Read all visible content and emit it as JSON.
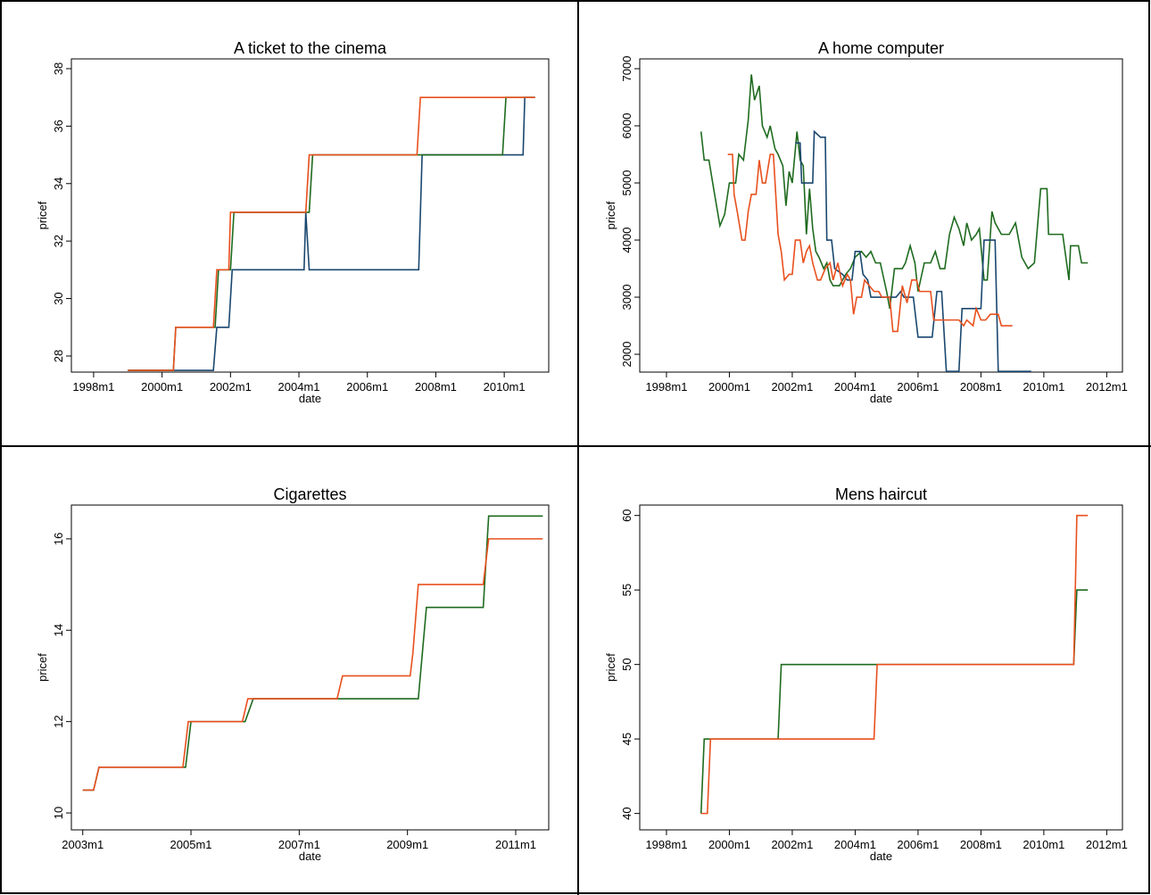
{
  "chart_data": [
    {
      "type": "line",
      "title": "A ticket to the cinema",
      "xlabel": "date",
      "ylabel": "pricef",
      "xlim": [
        1997.35,
        2011.3
      ],
      "ylim": [
        27.44,
        38.34
      ],
      "xticks": [
        {
          "value": 1998,
          "label": "1998m1"
        },
        {
          "value": 2000,
          "label": "2000m1"
        },
        {
          "value": 2002,
          "label": "2002m1"
        },
        {
          "value": 2004,
          "label": "2004m1"
        },
        {
          "value": 2006,
          "label": "2006m1"
        },
        {
          "value": 2008,
          "label": "2008m1"
        },
        {
          "value": 2010,
          "label": "2010m1"
        }
      ],
      "yticks": [
        28,
        30,
        32,
        34,
        36,
        38
      ],
      "series": [
        {
          "color": "#1a476f",
          "x": [
            1999.0,
            2001.5,
            2001.6,
            2001.95,
            2002.05,
            2004.15,
            2004.2,
            2004.3,
            2007.5,
            2007.6,
            2010.55,
            2010.6,
            2010.9
          ],
          "values": [
            27.5,
            27.5,
            29,
            29,
            31,
            31,
            33,
            31,
            31,
            35,
            35,
            37,
            37
          ]
        },
        {
          "color": "#1f6b1f",
          "x": [
            1999.0,
            2000.33,
            2000.4,
            2001.55,
            2001.65,
            2002.0,
            2002.1,
            2004.3,
            2004.4,
            2009.95,
            2010.05,
            2010.9
          ],
          "values": [
            27.5,
            27.5,
            29,
            29,
            31,
            31,
            33,
            33,
            35,
            35,
            37,
            37
          ]
        },
        {
          "color": "#e8501e",
          "x": [
            1999.0,
            2000.33,
            2000.4,
            2001.5,
            2001.6,
            2001.95,
            2002.0,
            2004.2,
            2004.3,
            2007.45,
            2007.55,
            2010.9
          ],
          "values": [
            27.5,
            27.5,
            29,
            29,
            31,
            31,
            33,
            33,
            35,
            35,
            37,
            37
          ]
        }
      ]
    },
    {
      "type": "line",
      "title": "A home computer",
      "xlabel": "date",
      "ylabel": "pricef",
      "xlim": [
        1997.15,
        2012.5
      ],
      "ylim": [
        1688,
        7172
      ],
      "xticks": [
        {
          "value": 1998,
          "label": "1998m1"
        },
        {
          "value": 2000,
          "label": "2000m1"
        },
        {
          "value": 2002,
          "label": "2002m1"
        },
        {
          "value": 2004,
          "label": "2004m1"
        },
        {
          "value": 2006,
          "label": "2006m1"
        },
        {
          "value": 2008,
          "label": "2008m1"
        },
        {
          "value": 2010,
          "label": "2010m1"
        },
        {
          "value": 2012,
          "label": "2012m1"
        }
      ],
      "yticks": [
        2000,
        3000,
        4000,
        5000,
        6000,
        7000
      ],
      "series": [
        {
          "color": "#1f6b1f",
          "x": [
            1999.1,
            1999.2,
            1999.35,
            1999.5,
            1999.7,
            1999.85,
            2000.0,
            2000.2,
            2000.3,
            2000.45,
            2000.6,
            2000.7,
            2000.8,
            2000.95,
            2001.05,
            2001.2,
            2001.3,
            2001.45,
            2001.55,
            2001.7,
            2001.8,
            2001.9,
            2002.0,
            2002.15,
            2002.25,
            2002.35,
            2002.45,
            2002.55,
            2002.65,
            2002.75,
            2002.85,
            2003.0,
            2003.1,
            2003.2,
            2003.3,
            2003.5,
            2003.7,
            2003.85,
            2004.0,
            2004.2,
            2004.35,
            2004.5,
            2004.65,
            2004.8,
            2005.0,
            2005.1,
            2005.25,
            2005.5,
            2005.6,
            2005.75,
            2005.9,
            2006.0,
            2006.2,
            2006.4,
            2006.55,
            2006.7,
            2006.85,
            2007.0,
            2007.15,
            2007.3,
            2007.45,
            2007.55,
            2007.7,
            2007.85,
            2007.95,
            2008.1,
            2008.2,
            2008.35,
            2008.45,
            2008.65,
            2008.9,
            2009.1,
            2009.3,
            2009.5,
            2009.7,
            2009.9,
            2010.1,
            2010.15,
            2010.6,
            2010.8,
            2010.85,
            2011.1,
            2011.2,
            2011.4
          ],
          "values": [
            5900,
            5400,
            5400,
            4900,
            4250,
            4450,
            5000,
            5000,
            5500,
            5400,
            6100,
            6900,
            6450,
            6700,
            6000,
            5800,
            6000,
            5600,
            5500,
            5300,
            4600,
            5200,
            5000,
            5900,
            5400,
            5300,
            4100,
            4900,
            4200,
            3800,
            3700,
            3500,
            3600,
            3300,
            3200,
            3200,
            3400,
            3500,
            3700,
            3800,
            3700,
            3800,
            3600,
            3600,
            3100,
            2800,
            3500,
            3500,
            3600,
            3900,
            3600,
            3100,
            3600,
            3600,
            3800,
            3500,
            3500,
            4100,
            4400,
            4200,
            3900,
            4300,
            4000,
            4100,
            4200,
            3300,
            3300,
            4500,
            4300,
            4100,
            4100,
            4300,
            3700,
            3500,
            3600,
            4900,
            4900,
            4100,
            4100,
            3300,
            3900,
            3900,
            3600,
            3600
          ]
        },
        {
          "color": "#1a476f",
          "x": [
            2002.1,
            2002.25,
            2002.3,
            2002.65,
            2002.7,
            2002.9,
            2003.05,
            2003.1,
            2003.25,
            2003.35,
            2003.6,
            2003.75,
            2003.9,
            2004.0,
            2004.15,
            2004.25,
            2004.4,
            2004.5,
            2005.3,
            2005.45,
            2005.55,
            2005.85,
            2006.0,
            2006.45,
            2006.6,
            2006.75,
            2006.9,
            2007.3,
            2007.4,
            2008.0,
            2008.1,
            2008.45,
            2008.55,
            2009.6
          ],
          "values": [
            5700,
            5700,
            5000,
            5000,
            5900,
            5800,
            5800,
            4000,
            4000,
            3500,
            3400,
            3300,
            3300,
            3800,
            3800,
            3400,
            3300,
            3000,
            3000,
            3100,
            3000,
            3000,
            2300,
            2300,
            3100,
            3100,
            1700,
            1700,
            2800,
            2800,
            4000,
            4000,
            1700,
            1700
          ]
        },
        {
          "color": "#e8501e",
          "x": [
            1999.95,
            2000.1,
            2000.15,
            2000.25,
            2000.4,
            2000.5,
            2000.6,
            2000.7,
            2000.85,
            2000.95,
            2001.05,
            2001.15,
            2001.3,
            2001.4,
            2001.55,
            2001.65,
            2001.75,
            2001.9,
            2002.0,
            2002.1,
            2002.25,
            2002.35,
            2002.45,
            2002.55,
            2002.65,
            2002.8,
            2002.9,
            2003.05,
            2003.2,
            2003.3,
            2003.45,
            2003.6,
            2003.75,
            2003.85,
            2003.95,
            2004.05,
            2004.2,
            2004.3,
            2004.45,
            2004.6,
            2004.75,
            2004.85,
            2005.1,
            2005.2,
            2005.35,
            2005.5,
            2005.65,
            2005.8,
            2005.95,
            2006.05,
            2006.4,
            2006.5,
            2007.3,
            2007.45,
            2007.55,
            2007.75,
            2007.85,
            2008.0,
            2008.15,
            2008.3,
            2008.55,
            2008.65,
            2009.0
          ],
          "values": [
            5500,
            5500,
            4800,
            4500,
            4000,
            4000,
            4500,
            4800,
            4800,
            5400,
            5000,
            5000,
            5500,
            5500,
            4100,
            3800,
            3300,
            3400,
            3400,
            4000,
            4000,
            3600,
            3800,
            3900,
            3600,
            3300,
            3300,
            3500,
            3600,
            3300,
            3600,
            3200,
            3400,
            3300,
            2700,
            3000,
            3000,
            3300,
            3200,
            3100,
            3100,
            3000,
            3000,
            2400,
            2400,
            3200,
            2900,
            3300,
            3300,
            3100,
            3100,
            2600,
            2600,
            2500,
            2600,
            2500,
            2800,
            2600,
            2600,
            2700,
            2700,
            2500,
            2500
          ]
        }
      ]
    },
    {
      "type": "line",
      "title": "Cigarettes",
      "xlabel": "date",
      "ylabel": "pricef",
      "xlim": [
        2002.79,
        2011.61
      ],
      "ylim": [
        9.63,
        16.74
      ],
      "xticks": [
        {
          "value": 2003,
          "label": "2003m1"
        },
        {
          "value": 2005,
          "label": "2005m1"
        },
        {
          "value": 2007,
          "label": "2007m1"
        },
        {
          "value": 2009,
          "label": "2009m1"
        },
        {
          "value": 2011,
          "label": "2011m1"
        }
      ],
      "yticks": [
        10,
        12,
        14,
        16
      ],
      "series": [
        {
          "color": "#1f6b1f",
          "x": [
            2003.0,
            2003.2,
            2003.3,
            2004.9,
            2005.0,
            2006.0,
            2006.15,
            2009.2,
            2009.35,
            2010.4,
            2010.5,
            2011.5
          ],
          "values": [
            10.5,
            10.5,
            11,
            11,
            12,
            12,
            12.5,
            12.5,
            14.5,
            14.5,
            16.5,
            16.5
          ]
        },
        {
          "color": "#e8501e",
          "x": [
            2003.0,
            2003.2,
            2003.3,
            2004.85,
            2004.95,
            2005.95,
            2006.05,
            2007.7,
            2007.8,
            2009.05,
            2009.1,
            2009.2,
            2010.4,
            2010.5,
            2011.5
          ],
          "values": [
            10.5,
            10.5,
            11,
            11,
            12,
            12,
            12.5,
            12.5,
            13,
            13,
            13.5,
            15,
            15,
            16,
            16
          ]
        }
      ]
    },
    {
      "type": "line",
      "title": "Mens haircut",
      "xlabel": "date",
      "ylabel": "pricef",
      "xlim": [
        1997.15,
        2012.5
      ],
      "ylim": [
        38.9,
        60.7
      ],
      "xticks": [
        {
          "value": 1998,
          "label": "1998m1"
        },
        {
          "value": 2000,
          "label": "2000m1"
        },
        {
          "value": 2002,
          "label": "2002m1"
        },
        {
          "value": 2004,
          "label": "2004m1"
        },
        {
          "value": 2006,
          "label": "2006m1"
        },
        {
          "value": 2008,
          "label": "2008m1"
        },
        {
          "value": 2010,
          "label": "2010m1"
        },
        {
          "value": 2012,
          "label": "2012m1"
        }
      ],
      "yticks": [
        40,
        45,
        50,
        55,
        60
      ],
      "series": [
        {
          "color": "#1f6b1f",
          "x": [
            1999.1,
            1999.2,
            2001.55,
            2001.65,
            2010.95,
            2011.05,
            2011.4
          ],
          "values": [
            40,
            45,
            45,
            50,
            50,
            55,
            55
          ]
        },
        {
          "color": "#e8501e",
          "x": [
            1999.1,
            1999.3,
            1999.4,
            2004.6,
            2004.7,
            2010.95,
            2011.05,
            2011.4
          ],
          "values": [
            40,
            40,
            45,
            45,
            50,
            50,
            60,
            60
          ]
        }
      ]
    }
  ]
}
